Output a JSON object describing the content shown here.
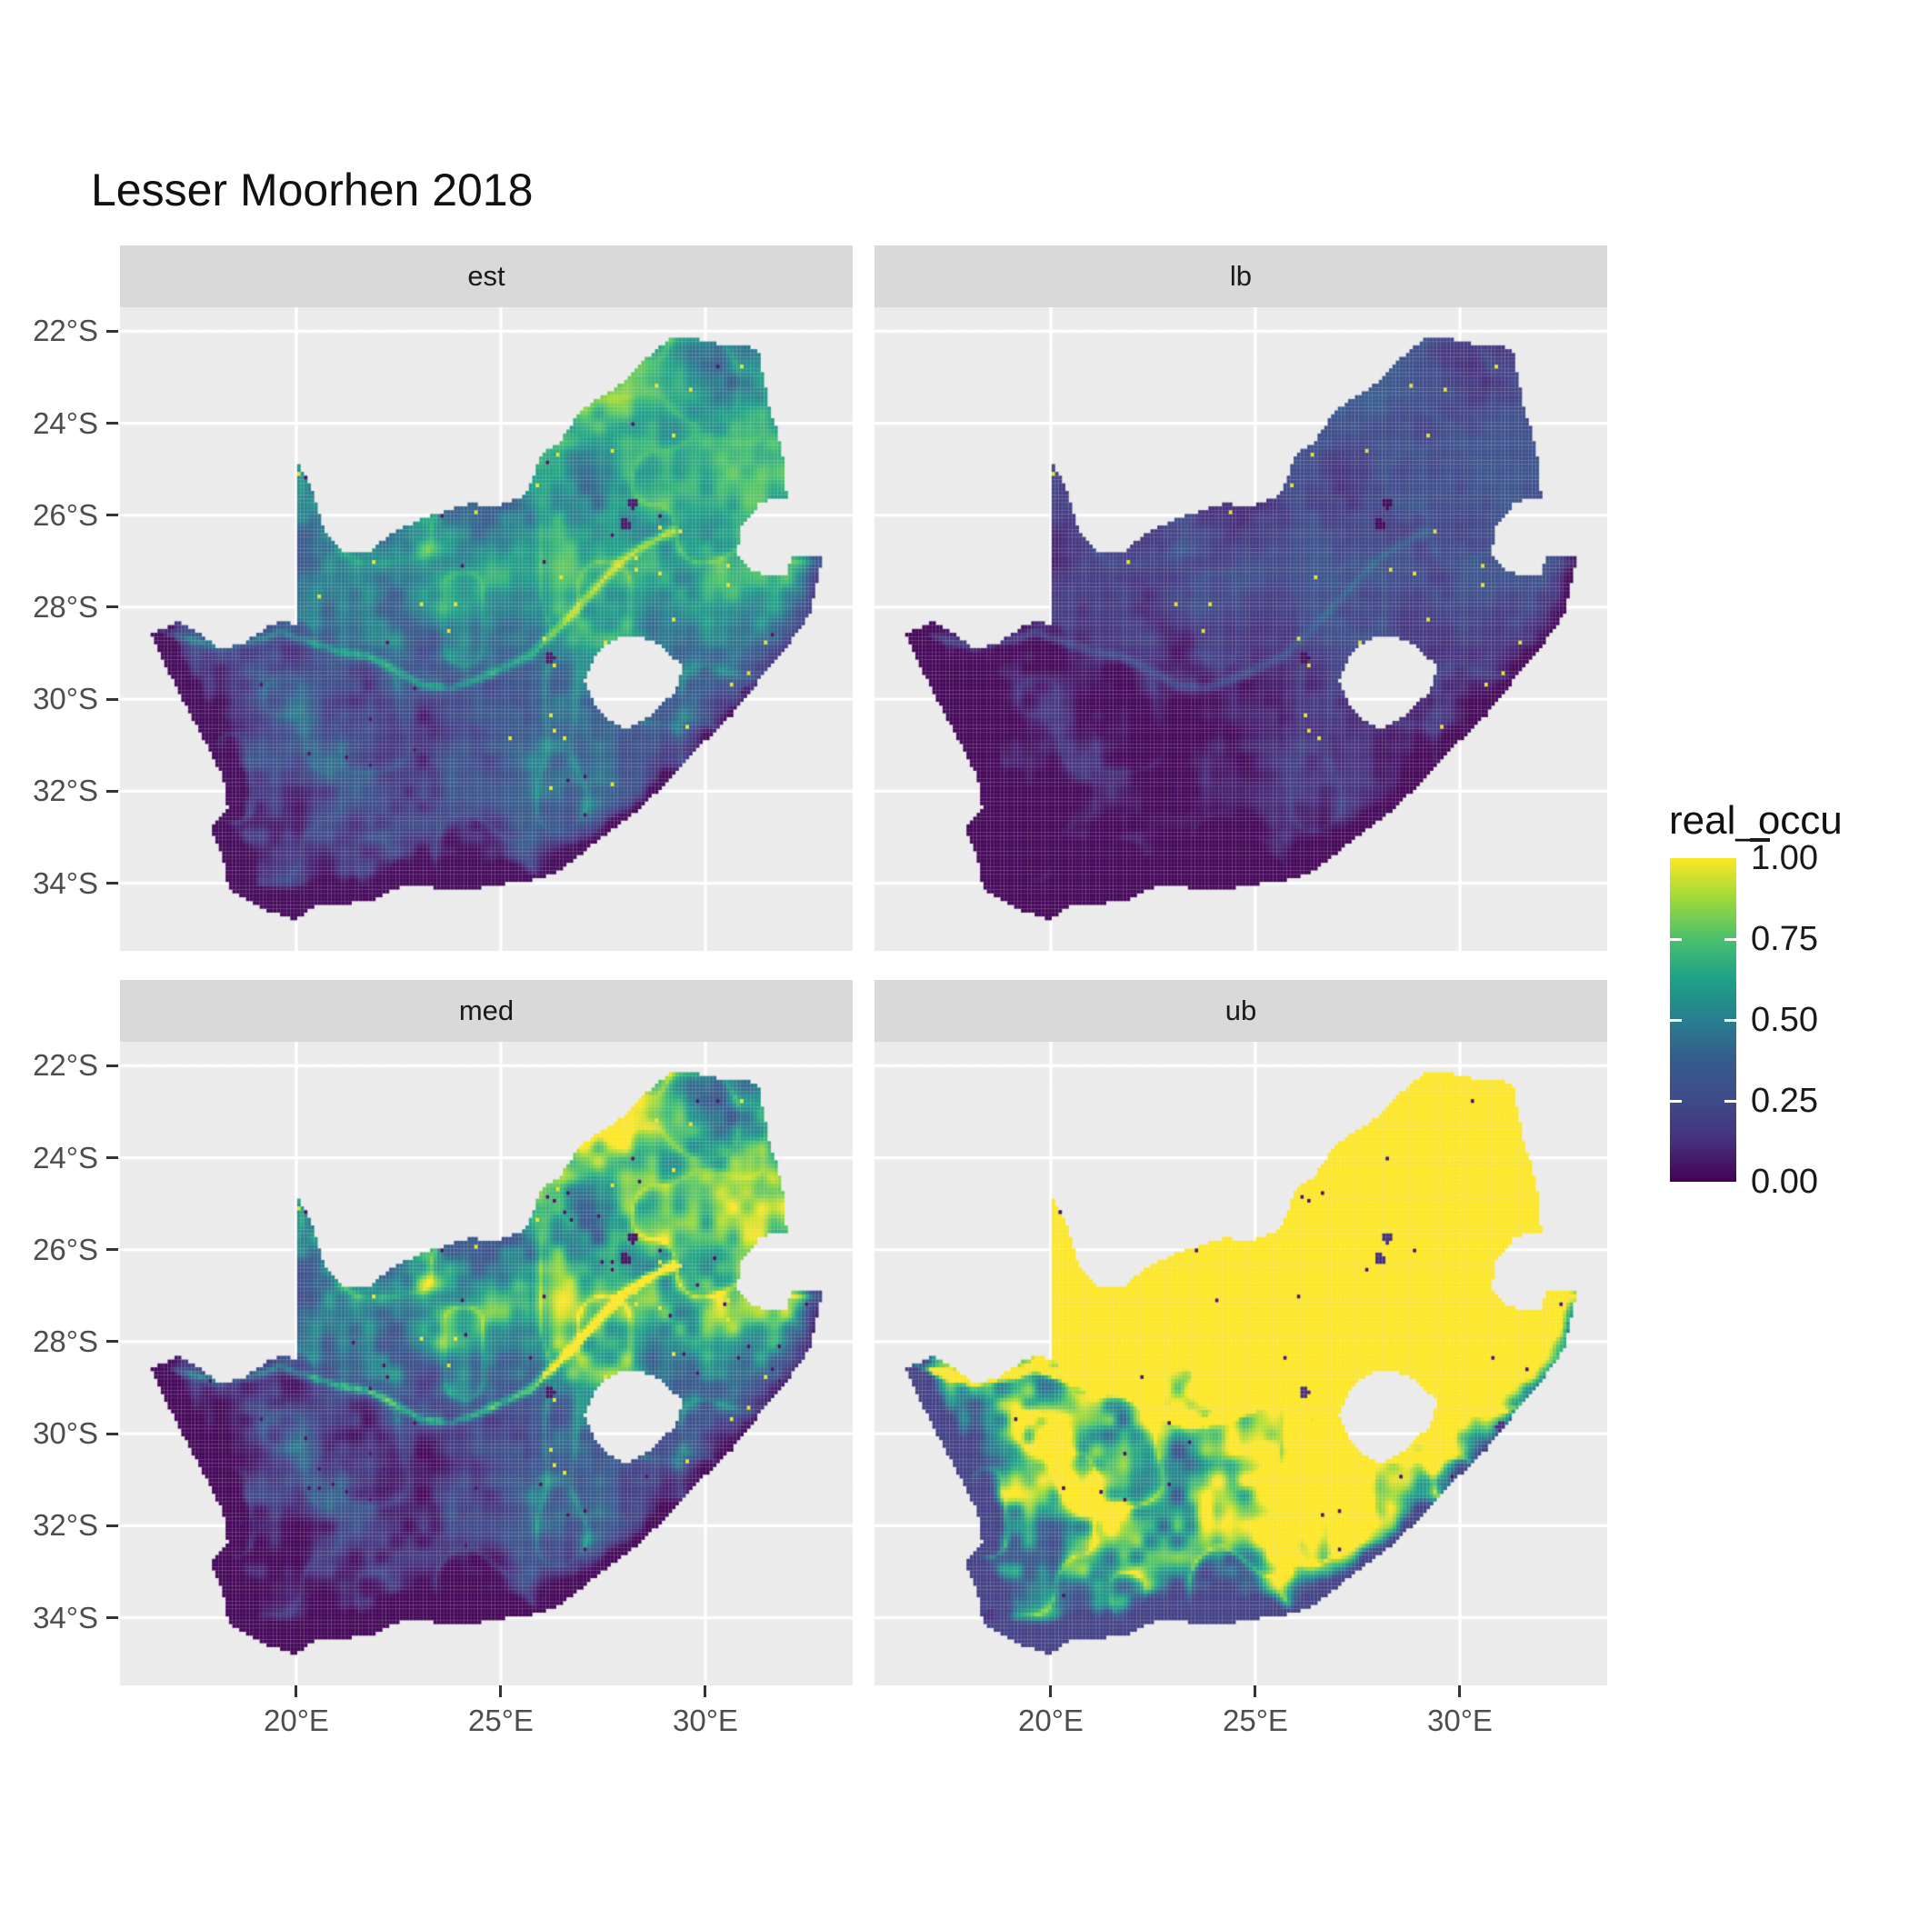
{
  "title": "Lesser Moorhen 2018",
  "facets": [
    {
      "label": "est"
    },
    {
      "label": "lb"
    },
    {
      "label": "med"
    },
    {
      "label": "ub"
    }
  ],
  "axes": {
    "x": {
      "range_lon": [
        15.69,
        33.6
      ],
      "ticks": [
        {
          "value": 20,
          "label": "20°E"
        },
        {
          "value": 25,
          "label": "25°E"
        },
        {
          "value": 30,
          "label": "30°E"
        }
      ]
    },
    "y": {
      "range_lat": [
        -35.47,
        -21.48
      ],
      "ticks": [
        {
          "value": -22,
          "label": "22°S"
        },
        {
          "value": -24,
          "label": "24°S"
        },
        {
          "value": -26,
          "label": "26°S"
        },
        {
          "value": -28,
          "label": "28°S"
        },
        {
          "value": -30,
          "label": "30°S"
        },
        {
          "value": -32,
          "label": "32°S"
        },
        {
          "value": -34,
          "label": "34°S"
        }
      ]
    }
  },
  "legend": {
    "title": "real_occu",
    "entries": [
      {
        "value": 1.0,
        "label": "1.00"
      },
      {
        "value": 0.75,
        "label": "0.75"
      },
      {
        "value": 0.5,
        "label": "0.50"
      },
      {
        "value": 0.25,
        "label": "0.25"
      },
      {
        "value": 0.0,
        "label": "0.00"
      }
    ]
  },
  "colors": {
    "background": "#ffffff",
    "panel_bg": "#ebebeb",
    "strip_bg": "#d9d9d9",
    "grid": "#ffffff",
    "axis_text": "#4d4d4d",
    "tick_mark": "#333333",
    "text": "#1a1a1a",
    "viridis": [
      [
        0.0,
        "#440154"
      ],
      [
        0.13,
        "#46327e"
      ],
      [
        0.25,
        "#3f4a8a"
      ],
      [
        0.38,
        "#365c8d"
      ],
      [
        0.5,
        "#277f8e"
      ],
      [
        0.63,
        "#1fa187"
      ],
      [
        0.75,
        "#4ac16d"
      ],
      [
        0.88,
        "#a0da39"
      ],
      [
        1.0,
        "#fde725"
      ]
    ]
  },
  "chart_data": {
    "type": "heatmap",
    "title": "Lesser Moorhen 2018",
    "variable": "real_occu",
    "region": "South Africa (raster of occupancy probability, Lesotho shown as hole)",
    "x_range_lon": [
      15.69,
      33.6
    ],
    "y_range_lat": [
      -35.47,
      -21.48
    ],
    "legend_position": "right",
    "grid": true,
    "cell_size_deg": 0.0833,
    "facet_summaries": [
      {
        "name": "est",
        "description": "estimated occupancy: moderate teal/green values, highest (0.5-0.9 with yellow specks) in the north-east interior, low (0-0.25) in the south-west and along south/east coasts; Orange river visible as bright green line",
        "typical_range": [
          0.05,
          0.9
        ]
      },
      {
        "name": "lb",
        "description": "lower bound: near zero (dark purple) almost everywhere, faint teal texture in the north-east, sparse bright yellow single cells in the north-east",
        "typical_range": [
          0.0,
          0.4
        ]
      },
      {
        "name": "med",
        "description": "median: strong contrast - dark purple south-west block bounded by the bright Orange river line, green/yellow-green north-east interior with dark speckles",
        "typical_range": [
          0.0,
          0.95
        ]
      },
      {
        "name": "ub",
        "description": "upper bound: yellow (~1.0) over most of the country, green-teal gradient bands and a dark purple rim along the west and south coasts, green speckle through the Karoo",
        "typical_range": [
          0.2,
          1.0
        ]
      }
    ],
    "geometry": {
      "mainland": [
        [
          16.45,
          -28.6
        ],
        [
          17.1,
          -28.3
        ],
        [
          17.6,
          -28.55
        ],
        [
          18.1,
          -28.9
        ],
        [
          18.7,
          -28.8
        ],
        [
          19.25,
          -28.45
        ],
        [
          19.7,
          -28.3
        ],
        [
          19.98,
          -28.4
        ],
        [
          19.98,
          -24.75
        ],
        [
          20.4,
          -25.45
        ],
        [
          20.7,
          -26.35
        ],
        [
          21.15,
          -26.85
        ],
        [
          21.8,
          -26.8
        ],
        [
          22.3,
          -26.4
        ],
        [
          22.9,
          -26.15
        ],
        [
          23.5,
          -25.95
        ],
        [
          24.2,
          -25.75
        ],
        [
          24.9,
          -25.8
        ],
        [
          25.55,
          -25.6
        ],
        [
          25.85,
          -25.1
        ],
        [
          25.95,
          -24.72
        ],
        [
          26.45,
          -24.4
        ],
        [
          26.9,
          -23.8
        ],
        [
          27.3,
          -23.5
        ],
        [
          27.95,
          -23.15
        ],
        [
          28.6,
          -22.55
        ],
        [
          29.1,
          -22.18
        ],
        [
          29.7,
          -22.15
        ],
        [
          30.4,
          -22.3
        ],
        [
          31.1,
          -22.35
        ],
        [
          31.3,
          -22.42
        ],
        [
          31.55,
          -23.6
        ],
        [
          31.78,
          -24.25
        ],
        [
          31.95,
          -24.95
        ],
        [
          31.98,
          -25.6
        ],
        [
          31.35,
          -25.72
        ],
        [
          30.82,
          -26.3
        ],
        [
          30.8,
          -26.9
        ],
        [
          31.1,
          -27.2
        ],
        [
          31.55,
          -27.32
        ],
        [
          31.97,
          -27.31
        ],
        [
          32.13,
          -26.85
        ],
        [
          32.88,
          -26.86
        ],
        [
          32.55,
          -28.15
        ],
        [
          32.05,
          -28.8
        ],
        [
          31.35,
          -29.55
        ],
        [
          30.65,
          -30.35
        ],
        [
          29.95,
          -30.95
        ],
        [
          29.2,
          -31.7
        ],
        [
          28.3,
          -32.45
        ],
        [
          27.4,
          -33.05
        ],
        [
          26.45,
          -33.72
        ],
        [
          25.65,
          -33.98
        ],
        [
          25.0,
          -34.02
        ],
        [
          24.2,
          -34.15
        ],
        [
          23.4,
          -34.1
        ],
        [
          22.6,
          -34.05
        ],
        [
          21.9,
          -34.35
        ],
        [
          21.2,
          -34.45
        ],
        [
          20.45,
          -34.5
        ],
        [
          20.0,
          -34.8
        ],
        [
          19.3,
          -34.6
        ],
        [
          18.8,
          -34.35
        ],
        [
          18.43,
          -34.2
        ],
        [
          18.3,
          -33.9
        ],
        [
          18.2,
          -33.4
        ],
        [
          17.88,
          -32.78
        ],
        [
          18.32,
          -32.35
        ],
        [
          18.22,
          -31.7
        ],
        [
          17.7,
          -30.8
        ],
        [
          17.1,
          -29.8
        ],
        [
          16.7,
          -29.1
        ]
      ],
      "lesotho": [
        [
          27.05,
          -29.6
        ],
        [
          27.35,
          -29.0
        ],
        [
          27.75,
          -28.7
        ],
        [
          28.35,
          -28.6
        ],
        [
          28.95,
          -28.85
        ],
        [
          29.45,
          -29.3
        ],
        [
          29.25,
          -29.85
        ],
        [
          28.65,
          -30.35
        ],
        [
          28.05,
          -30.65
        ],
        [
          27.6,
          -30.45
        ],
        [
          27.25,
          -30.05
        ]
      ],
      "coastline": [
        [
          32.88,
          -26.86
        ],
        [
          32.55,
          -28.15
        ],
        [
          32.05,
          -28.8
        ],
        [
          31.35,
          -29.55
        ],
        [
          30.65,
          -30.35
        ],
        [
          29.95,
          -30.95
        ],
        [
          29.2,
          -31.7
        ],
        [
          28.3,
          -32.45
        ],
        [
          27.4,
          -33.05
        ],
        [
          26.45,
          -33.72
        ],
        [
          25.65,
          -33.98
        ],
        [
          25.0,
          -34.02
        ],
        [
          24.2,
          -34.15
        ],
        [
          23.4,
          -34.1
        ],
        [
          22.6,
          -34.05
        ],
        [
          21.9,
          -34.35
        ],
        [
          21.2,
          -34.45
        ],
        [
          20.45,
          -34.5
        ],
        [
          20.0,
          -34.8
        ],
        [
          19.3,
          -34.6
        ],
        [
          18.8,
          -34.35
        ],
        [
          18.43,
          -34.2
        ],
        [
          18.3,
          -33.9
        ],
        [
          18.2,
          -33.4
        ],
        [
          17.88,
          -32.78
        ],
        [
          18.32,
          -32.35
        ],
        [
          18.22,
          -31.7
        ],
        [
          17.7,
          -30.8
        ],
        [
          17.1,
          -29.8
        ],
        [
          16.7,
          -29.1
        ],
        [
          16.45,
          -28.6
        ]
      ],
      "river": [
        [
          16.6,
          -28.5
        ],
        [
          17.4,
          -28.7
        ],
        [
          18.1,
          -28.85
        ],
        [
          18.9,
          -28.75
        ],
        [
          19.6,
          -28.55
        ],
        [
          20.3,
          -28.75
        ],
        [
          21.0,
          -28.95
        ],
        [
          21.7,
          -29.05
        ],
        [
          22.4,
          -29.35
        ],
        [
          23.1,
          -29.7
        ],
        [
          23.8,
          -29.75
        ],
        [
          24.5,
          -29.55
        ],
        [
          25.1,
          -29.3
        ],
        [
          25.7,
          -29.05
        ],
        [
          26.3,
          -28.55
        ],
        [
          26.85,
          -28.05
        ],
        [
          27.4,
          -27.5
        ],
        [
          27.95,
          -27.0
        ],
        [
          28.6,
          -26.6
        ],
        [
          29.2,
          -26.35
        ]
      ],
      "dark_cities": [
        [
          28.05,
          -26.2
        ],
        [
          28.25,
          -25.73
        ],
        [
          31.0,
          -29.85
        ],
        [
          18.5,
          -33.95
        ],
        [
          26.2,
          -29.1
        ]
      ]
    },
    "model": {
      "facets": [
        {
          "name": "est",
          "scale": 1.0,
          "offset": 0.0,
          "gamma": 1.0,
          "yellow_dots": 0.004,
          "dark_dots": 0.0015,
          "dot_ne_min": 0.4,
          "urban_v": 0.07
        },
        {
          "name": "lb",
          "scale": 0.55,
          "offset": -0.1,
          "gamma": 1.0,
          "yellow_dots": 0.0035,
          "dark_dots": 0.0,
          "dot_ne_min": 0.45,
          "urban_v": 0.02
        },
        {
          "name": "med",
          "scale": 1.45,
          "offset": -0.02,
          "gamma": 1.5,
          "yellow_dots": 0.004,
          "dark_dots": 0.004,
          "dot_ne_min": 0.45,
          "urban_v": 0.05
        },
        {
          "name": "ub",
          "scale": 2.6,
          "offset": 0.15,
          "gamma": 1.0,
          "yellow_dots": 0.0,
          "dark_dots": 0.002,
          "dot_ne_min": 0.5,
          "urban_v": 0.12
        }
      ]
    }
  }
}
